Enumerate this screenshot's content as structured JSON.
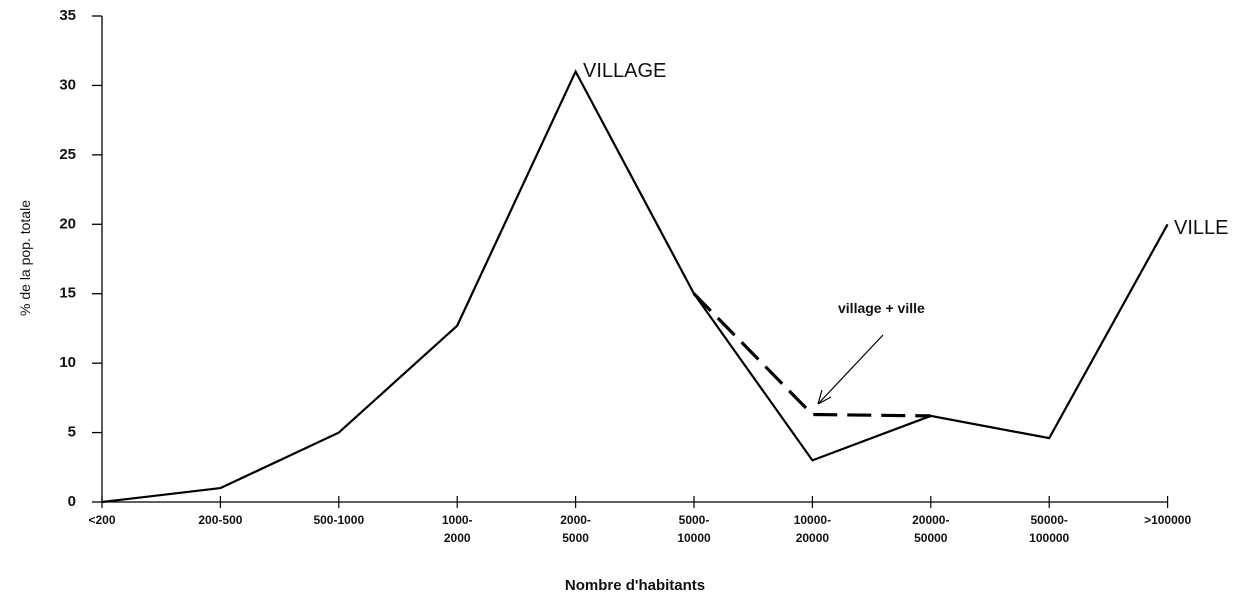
{
  "chart_data": {
    "type": "line",
    "categories": [
      "<200",
      "200-500",
      "500-1000",
      "1000-\n2000",
      "2000-\n5000",
      "5000-\n10000",
      "10000-\n20000",
      "20000-\n50000",
      "50000-\n100000",
      ">100000"
    ],
    "series": [
      {
        "color": "#000000",
        "dashed": false,
        "values": [
          0,
          1,
          5,
          12.7,
          31,
          15,
          3,
          6.2,
          4.6,
          20
        ]
      },
      {
        "name": "village + ville",
        "color": "#000000",
        "dashed": true,
        "values": [
          null,
          null,
          null,
          null,
          null,
          15,
          6.3,
          6.2,
          null,
          null
        ]
      }
    ],
    "ylim": [
      0,
      35
    ],
    "yticks": [
      0,
      5,
      10,
      15,
      20,
      25,
      30,
      35
    ],
    "y_label": "% de la pop. totale",
    "x_label": "Nombre d'habitants",
    "annotations": [
      "VILLAGE",
      "VILLE"
    ],
    "grid": false
  }
}
